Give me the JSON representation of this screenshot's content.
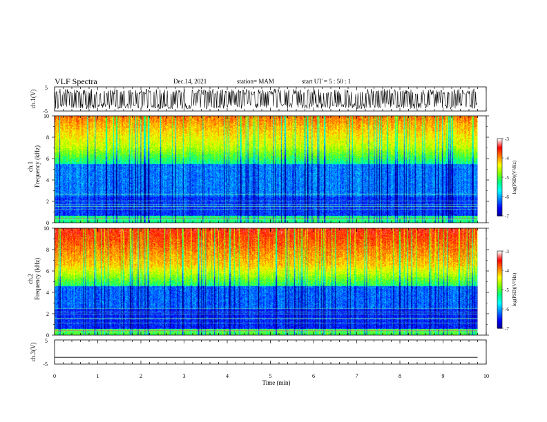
{
  "header": {
    "title": "VLF Spectra",
    "date": "Dec.14, 2021",
    "station": "station= MAM",
    "start": "start  UT =   5 : 50 : 1"
  },
  "chart_data": [
    {
      "type": "line",
      "name": "ch1-waveform",
      "ylabel": "ch.1(V)",
      "ylim": [
        -5,
        5
      ],
      "yticks": [
        "5",
        "-5"
      ],
      "xlim": [
        0,
        10
      ]
    },
    {
      "type": "heatmap",
      "name": "ch1-spectrogram",
      "ylabel_line1": "ch.1",
      "ylabel_line2": "Frequency (kHz)",
      "ylim": [
        0,
        10
      ],
      "yticks": [
        "0",
        "2",
        "4",
        "6",
        "8",
        "10"
      ],
      "xlim": [
        0,
        9.8
      ],
      "colorbar": {
        "label": "log(PSD)(V²/Hz)",
        "range": [
          -7,
          -3
        ],
        "ticks": [
          "-3",
          "-4",
          "-5",
          "-6",
          "-7"
        ]
      },
      "colormap": [
        "#000090",
        "#0000ff",
        "#0080ff",
        "#00ffff",
        "#00ff80",
        "#80ff00",
        "#ffff00",
        "#ff8000",
        "#ff0000",
        "#ffffff"
      ]
    },
    {
      "type": "heatmap",
      "name": "ch2-spectrogram",
      "ylabel_line1": "ch.2",
      "ylabel_line2": "Frequency (kHz)",
      "ylim": [
        0,
        10
      ],
      "yticks": [
        "0",
        "2",
        "4",
        "6",
        "8",
        "10"
      ],
      "xlim": [
        0,
        9.8
      ],
      "colorbar": {
        "label": "log(PSD)(V²/Hz)",
        "range": [
          -7,
          -3
        ],
        "ticks": [
          "-3",
          "-4",
          "-5",
          "-6",
          "-7"
        ]
      },
      "colormap": [
        "#000090",
        "#0000ff",
        "#0080ff",
        "#00ffff",
        "#00ff80",
        "#80ff00",
        "#ffff00",
        "#ff8000",
        "#ff0000",
        "#ffffff"
      ]
    },
    {
      "type": "line",
      "name": "ch3-waveform",
      "ylabel": "ch.3(V)",
      "ylim": [
        -5,
        5
      ],
      "yticks": [
        "5",
        "-5"
      ],
      "x": [
        0,
        9.8
      ],
      "y": [
        -2.2,
        -2.2
      ]
    }
  ],
  "xaxis": {
    "label": "Time (min)",
    "ticks": [
      "0",
      "1",
      "2",
      "3",
      "4",
      "5",
      "6",
      "7",
      "8",
      "9",
      "10"
    ],
    "range": [
      0,
      10
    ]
  }
}
